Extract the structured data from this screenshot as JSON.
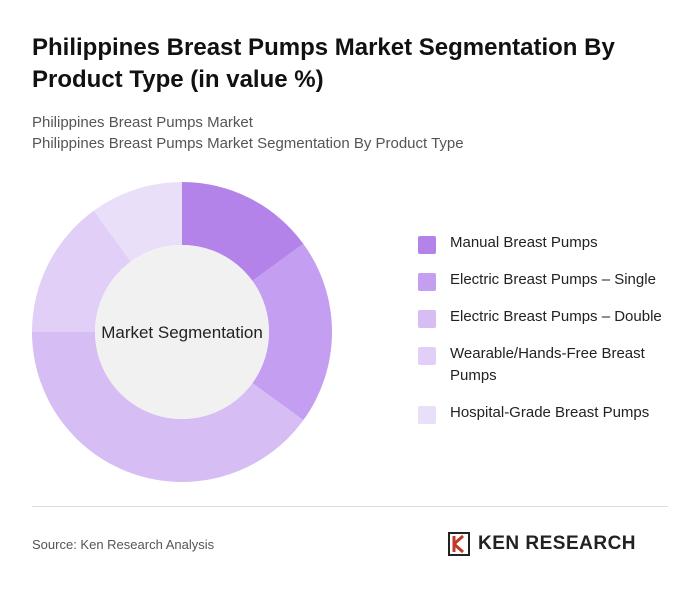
{
  "chart_data": {
    "type": "donut",
    "title": "Philippines Breast Pumps Market Segmentation By Product Type (in value %)",
    "subtitle": [
      "Philippines Breast Pumps Market",
      "Philippines Breast Pumps Market Segmentation By Product Type"
    ],
    "center_label": "Market Segmentation",
    "categories": [
      "Manual Breast Pumps",
      "Electric Breast Pumps – Single",
      "Electric Breast Pumps – Double",
      "Wearable/Hands-Free Breast Pumps",
      "Hospital-Grade Breast Pumps"
    ],
    "values": [
      15,
      20,
      40,
      15,
      10
    ],
    "colors": [
      "#b383e9",
      "#c49ef0",
      "#d6bdf4",
      "#e1cff7",
      "#eadff9"
    ],
    "source": "Source: Ken Research Analysis",
    "logo": "KEN RESEARCH"
  }
}
